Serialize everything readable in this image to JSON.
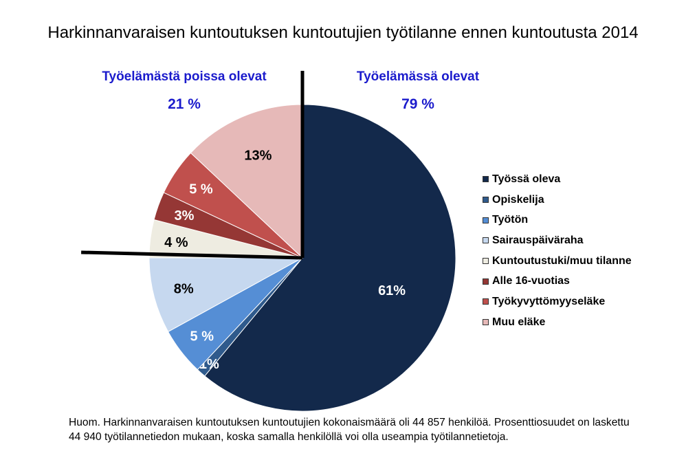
{
  "chart_data": {
    "type": "pie",
    "title": "Harkinnanvaraisen kuntoutuksen kuntoutujien työtilanne ennen kuntoutusta 2014",
    "slices": [
      {
        "label": "Työssä oleva",
        "value": 61,
        "value_label": "61%",
        "color": "#13294b",
        "label_color": "#ffffff"
      },
      {
        "label": "Opiskelija",
        "value": 1,
        "value_label": "1%",
        "color": "#2f5a8c",
        "label_color": "#ffffff"
      },
      {
        "label": "Työtön",
        "value": 5,
        "value_label": "5 %",
        "color": "#558ed5",
        "label_color": "#ffffff"
      },
      {
        "label": "Sairauspäiväraha",
        "value": 8,
        "value_label": "8%",
        "color": "#c6d8ef",
        "label_color": "#000000"
      },
      {
        "label": "Kuntoutustuki/muu tilanne",
        "value": 4,
        "value_label": "4 %",
        "color": "#eeece1",
        "label_color": "#000000"
      },
      {
        "label": "Alle 16-vuotias",
        "value": 3,
        "value_label": "3%",
        "color": "#953735",
        "label_color": "#ffffff"
      },
      {
        "label": "Työkyvyttömyyseläke",
        "value": 5,
        "value_label": "5 %",
        "color": "#c0504d",
        "label_color": "#ffffff"
      },
      {
        "label": "Muu eläke",
        "value": 13,
        "value_label": "13%",
        "color": "#e6b9b8",
        "label_color": "#000000"
      }
    ],
    "groups": [
      {
        "label": "Työelämästä poissa olevat",
        "value_label": "21 %"
      },
      {
        "label": "Työelämässä olevat",
        "value_label": "79 %"
      }
    ],
    "legend_position": "right"
  },
  "note": {
    "line1": "Huom. Harkinnanvaraisen kuntoutuksen kuntoutujien kokonaismäärä oli 44 857 henkilöä. Prosenttiosuudet on laskettu",
    "line2": "44 940 työtilannetiedon mukaan, koska samalla henkilöllä voi olla useampia työtilannetietoja."
  }
}
